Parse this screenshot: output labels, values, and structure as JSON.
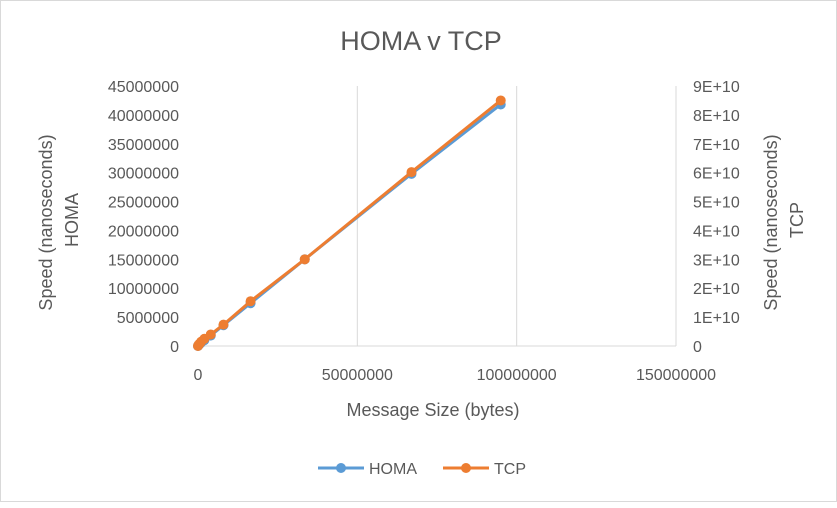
{
  "chart_data": {
    "type": "line",
    "title": "HOMA v TCP",
    "xlabel": "Message Size (bytes)",
    "ylabel_left": [
      "Speed (nanoseconds)",
      "HOMA"
    ],
    "ylabel_right": [
      "Speed (nanoseconds)",
      "TCP"
    ],
    "xlim": [
      0,
      150000000
    ],
    "ylim_left": [
      0,
      45000000
    ],
    "ylim_right": [
      0,
      90000000000
    ],
    "x_ticks": [
      "0",
      "50000000",
      "100000000",
      "150000000"
    ],
    "y_left_ticks": [
      "0",
      "5000000",
      "10000000",
      "15000000",
      "20000000",
      "25000000",
      "30000000",
      "35000000",
      "40000000",
      "45000000"
    ],
    "y_right_ticks": [
      "0",
      "1E+10",
      "2E+10",
      "3E+10",
      "4E+10",
      "5E+10",
      "6E+10",
      "7E+10",
      "8E+10",
      "9E+10"
    ],
    "grid": "vertical",
    "legend_position": "bottom",
    "series": [
      {
        "name": "HOMA",
        "axis": "left",
        "color": "#5b9bd5",
        "x": [
          0,
          100000,
          500000,
          1000000,
          2000000,
          4000000,
          8000000,
          16500000,
          33500000,
          67000000,
          95000000
        ],
        "y": [
          0,
          100000,
          300000,
          600000,
          1000000,
          1800000,
          3600000,
          7400000,
          15000000,
          29800000,
          41800000
        ]
      },
      {
        "name": "TCP",
        "axis": "right",
        "color": "#ed7d31",
        "x": [
          0,
          100000,
          500000,
          1000000,
          2000000,
          4000000,
          8000000,
          16500000,
          33500000,
          67000000,
          95000000
        ],
        "y": [
          0,
          300000000,
          800000000,
          1500000000,
          2500000000,
          4000000000,
          7400000000,
          15500000000,
          30000000000,
          60200000000,
          85000000000
        ]
      }
    ]
  }
}
